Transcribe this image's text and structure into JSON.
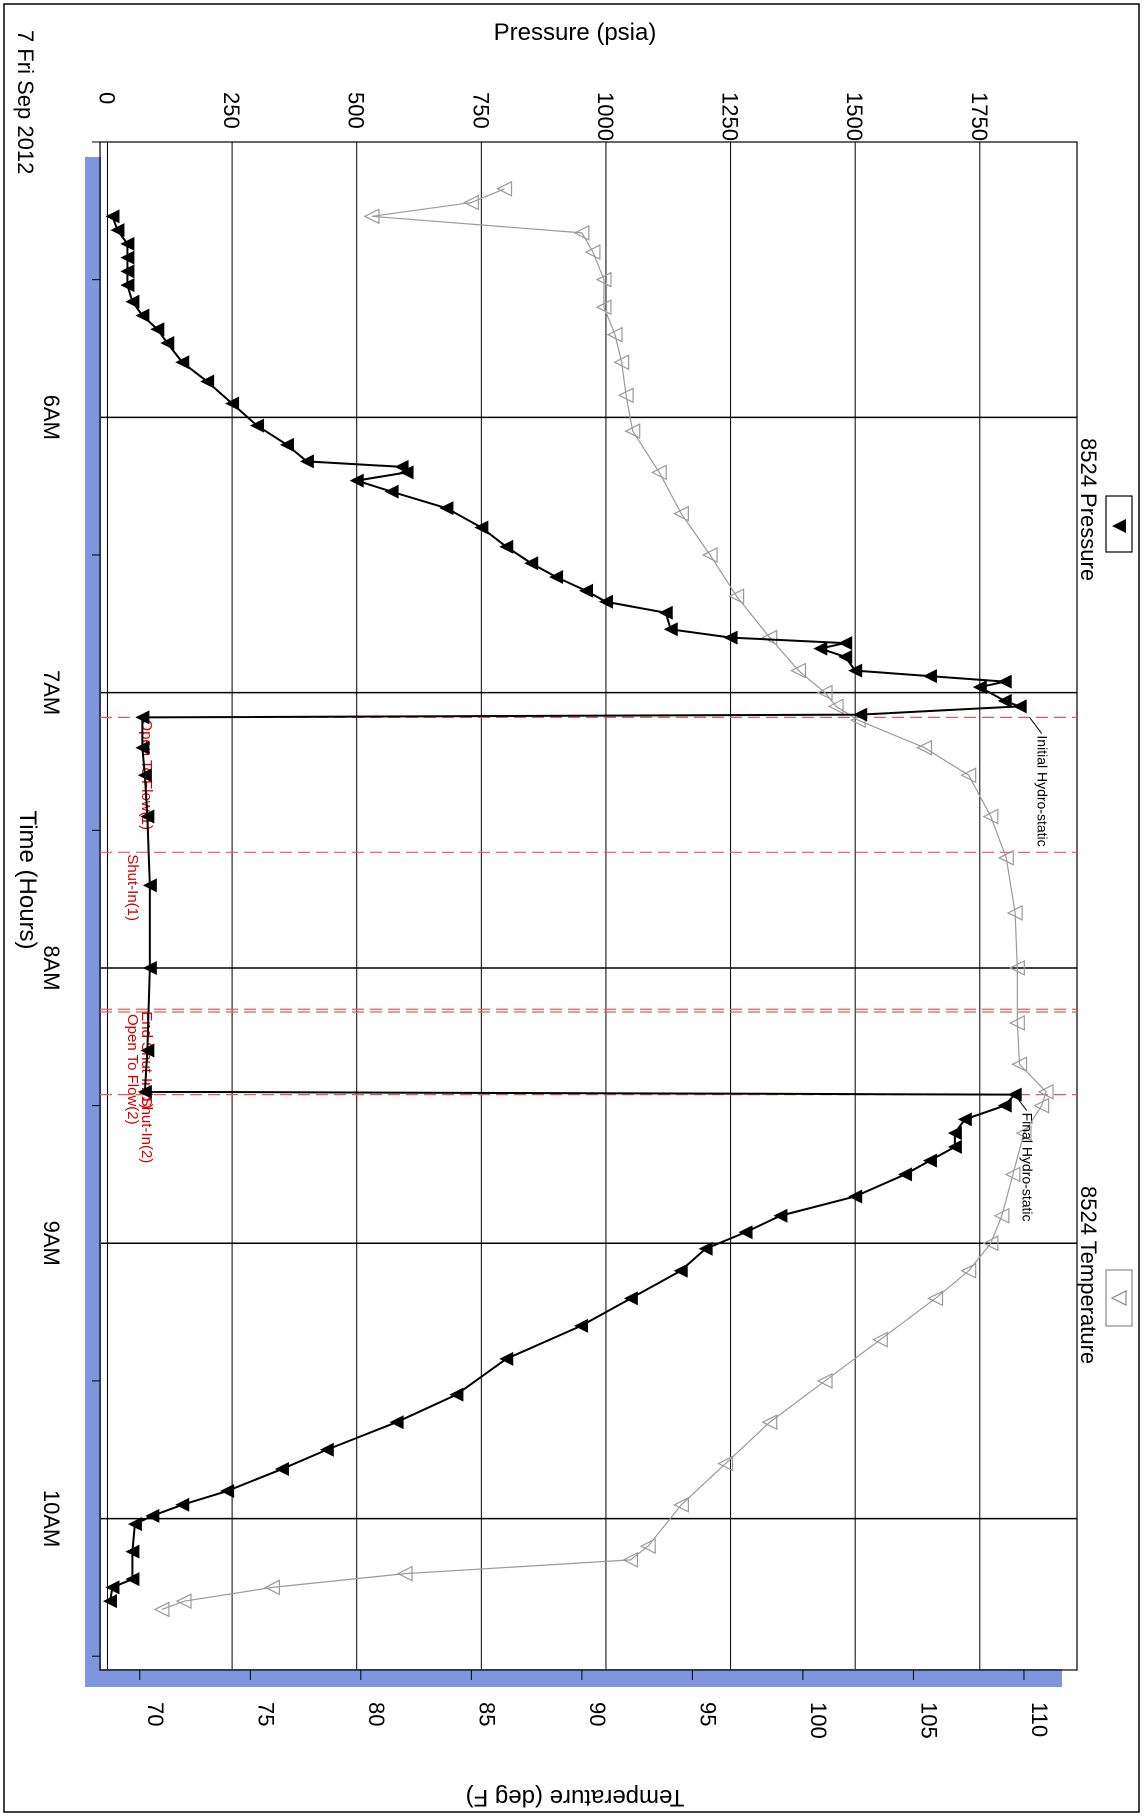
{
  "chart_data": {
    "type": "line",
    "date_label": "7 Fri Sep 2012",
    "xlabel": "Time (Hours)",
    "ylabel_left": "Pressure (psia)",
    "ylabel_right": "Temperature (deg F)",
    "x_ticks": [
      "6AM",
      "7AM",
      "8AM",
      "9AM",
      "10AM"
    ],
    "pressure_ticks": [
      0,
      250,
      500,
      750,
      1000,
      1250,
      1500,
      1750
    ],
    "temperature_ticks": [
      70,
      75,
      80,
      85,
      90,
      95,
      100,
      105,
      110
    ],
    "xlim_hours": [
      5.0,
      10.55
    ],
    "pressure_lim": [
      -15,
      1945
    ],
    "temperature_lim": [
      68.2,
      112.4
    ],
    "grid": true,
    "legend_position": "top",
    "colors": {
      "pressure": "#000000",
      "temperature": "#9a9a9a",
      "event_line": "#e85a5a",
      "event_text": "#d40000",
      "time_band": "#7f95e0"
    },
    "series": [
      {
        "name": "8524 Pressure",
        "axis": "pressure",
        "marker": "filled-triangle",
        "points": [
          [
            5.27,
            10
          ],
          [
            5.32,
            20
          ],
          [
            5.37,
            40
          ],
          [
            5.42,
            40
          ],
          [
            5.47,
            40
          ],
          [
            5.52,
            40
          ],
          [
            5.58,
            50
          ],
          [
            5.63,
            70
          ],
          [
            5.68,
            100
          ],
          [
            5.73,
            120
          ],
          [
            5.8,
            150
          ],
          [
            5.87,
            200
          ],
          [
            5.95,
            250
          ],
          [
            6.03,
            300
          ],
          [
            6.1,
            360
          ],
          [
            6.16,
            400
          ],
          [
            6.18,
            590
          ],
          [
            6.2,
            600
          ],
          [
            6.23,
            500
          ],
          [
            6.27,
            570
          ],
          [
            6.33,
            680
          ],
          [
            6.4,
            750
          ],
          [
            6.47,
            800
          ],
          [
            6.53,
            850
          ],
          [
            6.58,
            900
          ],
          [
            6.63,
            960
          ],
          [
            6.67,
            1000
          ],
          [
            6.71,
            1120
          ],
          [
            6.77,
            1130
          ],
          [
            6.8,
            1250
          ],
          [
            6.82,
            1480
          ],
          [
            6.84,
            1430
          ],
          [
            6.87,
            1480
          ],
          [
            6.92,
            1500
          ],
          [
            6.94,
            1650
          ],
          [
            6.96,
            1800
          ],
          [
            6.98,
            1750
          ],
          [
            7.03,
            1800
          ],
          [
            7.05,
            1830
          ],
          [
            7.08,
            1510
          ],
          [
            7.09,
            70
          ],
          [
            7.2,
            70
          ],
          [
            7.3,
            75
          ],
          [
            7.45,
            80
          ],
          [
            7.7,
            85
          ],
          [
            8.0,
            85
          ],
          [
            8.3,
            80
          ],
          [
            8.45,
            75
          ],
          [
            8.46,
            1820
          ],
          [
            8.5,
            1800
          ],
          [
            8.55,
            1720
          ],
          [
            8.6,
            1700
          ],
          [
            8.65,
            1700
          ],
          [
            8.7,
            1650
          ],
          [
            8.75,
            1600
          ],
          [
            8.83,
            1500
          ],
          [
            8.9,
            1350
          ],
          [
            8.96,
            1280
          ],
          [
            9.02,
            1200
          ],
          [
            9.1,
            1150
          ],
          [
            9.2,
            1050
          ],
          [
            9.3,
            950
          ],
          [
            9.42,
            800
          ],
          [
            9.55,
            700
          ],
          [
            9.65,
            580
          ],
          [
            9.75,
            440
          ],
          [
            9.82,
            350
          ],
          [
            9.9,
            240
          ],
          [
            9.95,
            150
          ],
          [
            9.99,
            90
          ],
          [
            10.02,
            55
          ],
          [
            10.12,
            50
          ],
          [
            10.22,
            50
          ],
          [
            10.25,
            10
          ],
          [
            10.3,
            5
          ]
        ]
      },
      {
        "name": "8524 Temperature",
        "axis": "temperature",
        "marker": "hollow-triangle",
        "points": [
          [
            5.17,
            86.5
          ],
          [
            5.22,
            85
          ],
          [
            5.27,
            80.5
          ],
          [
            5.33,
            90
          ],
          [
            5.4,
            90.5
          ],
          [
            5.5,
            91
          ],
          [
            5.6,
            91
          ],
          [
            5.7,
            91.5
          ],
          [
            5.8,
            91.8
          ],
          [
            5.92,
            92
          ],
          [
            6.05,
            92.3
          ],
          [
            6.2,
            93.5
          ],
          [
            6.35,
            94.5
          ],
          [
            6.5,
            95.8
          ],
          [
            6.65,
            97
          ],
          [
            6.8,
            98.5
          ],
          [
            6.92,
            99.8
          ],
          [
            7.0,
            101
          ],
          [
            7.05,
            101.5
          ],
          [
            7.1,
            102.5
          ],
          [
            7.2,
            105.5
          ],
          [
            7.3,
            107.5
          ],
          [
            7.45,
            108.5
          ],
          [
            7.6,
            109.2
          ],
          [
            7.8,
            109.6
          ],
          [
            8.0,
            109.7
          ],
          [
            8.2,
            109.7
          ],
          [
            8.35,
            109.8
          ],
          [
            8.45,
            111
          ],
          [
            8.5,
            110.8
          ],
          [
            8.6,
            110
          ],
          [
            8.75,
            109.5
          ],
          [
            8.9,
            109
          ],
          [
            9.0,
            108.5
          ],
          [
            9.1,
            107.5
          ],
          [
            9.2,
            106
          ],
          [
            9.35,
            103.5
          ],
          [
            9.5,
            101
          ],
          [
            9.65,
            98.5
          ],
          [
            9.8,
            96.5
          ],
          [
            9.95,
            94.5
          ],
          [
            10.1,
            93
          ],
          [
            10.15,
            92.2
          ],
          [
            10.2,
            82
          ],
          [
            10.25,
            76
          ],
          [
            10.3,
            72
          ],
          [
            10.33,
            71
          ]
        ]
      }
    ],
    "events": [
      {
        "label": "Open To Flow(1)",
        "time": 7.09
      },
      {
        "label": "Shut-In(1)",
        "time": 7.58
      },
      {
        "label": "End Shut-In(1)",
        "time": 8.15
      },
      {
        "label": "Open To Flow(2)",
        "time": 8.16
      },
      {
        "label": "Shut-In(2)",
        "time": 8.46
      }
    ],
    "annotations": [
      {
        "label": "Initial Hydro-static",
        "time": 7.09,
        "pressure": 1850
      },
      {
        "label": "Final Hydro-static",
        "time": 8.46,
        "pressure": 1820
      }
    ]
  }
}
